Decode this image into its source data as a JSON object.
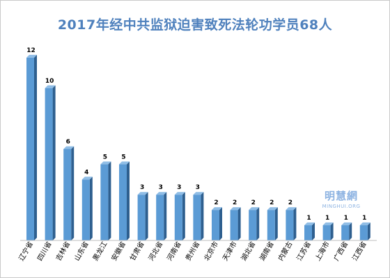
{
  "chart_data": {
    "type": "bar",
    "title": "2017年经中共监狱迫害致死法轮功学员68人",
    "categories": [
      "辽宁省",
      "四川省",
      "吉林省",
      "山东省",
      "黑龙江",
      "安徽省",
      "甘肃省",
      "河北省",
      "河南省",
      "贵州省",
      "北京市",
      "天津市",
      "湖北省",
      "湖南省",
      "内蒙古",
      "江苏省",
      "上海市",
      "广西省",
      "江西省"
    ],
    "values": [
      12,
      10,
      6,
      4,
      5,
      5,
      3,
      3,
      3,
      3,
      2,
      2,
      2,
      2,
      2,
      1,
      1,
      1,
      1
    ],
    "ylim": [
      0,
      13
    ],
    "grid": false,
    "legend": "none",
    "colors": {
      "bar_front": "#5b9bd5",
      "bar_side": "#2e5f8f",
      "bar_top": "#8fbde6",
      "title": "#4f81bd"
    }
  },
  "watermark": {
    "cn": "明慧網",
    "en": "MINGHUI.ORG"
  }
}
